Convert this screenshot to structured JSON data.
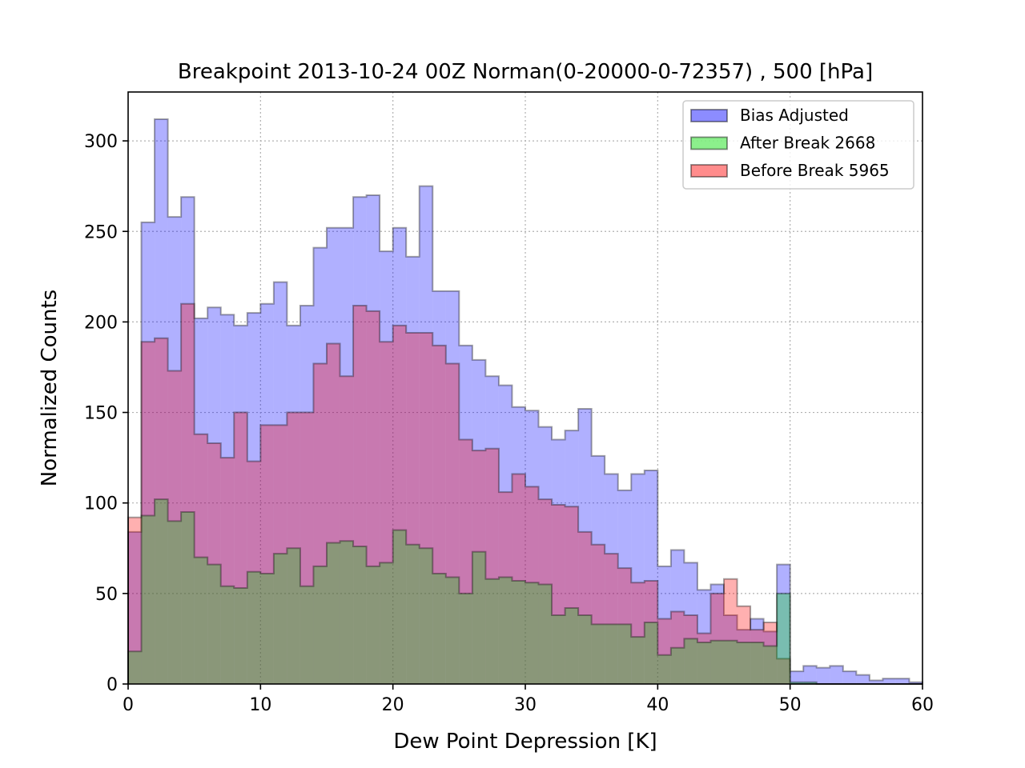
{
  "chart_data": {
    "type": "histogram",
    "title": "Breakpoint 2013-10-24 00Z Norman(0-20000-0-72357) , 500 [hPa]",
    "xlabel": "Dew Point Depression [K]",
    "ylabel": "Normalized Counts",
    "xlim": [
      0,
      60
    ],
    "ylim": [
      0,
      327
    ],
    "xticks": [
      0,
      10,
      20,
      30,
      40,
      50,
      60
    ],
    "yticks": [
      0,
      50,
      100,
      150,
      200,
      250,
      300
    ],
    "grid": true,
    "legend_position": "upper-right",
    "bin_width": 1,
    "series": [
      {
        "name": "Bias Adjusted",
        "color": "#0000ff",
        "start": 0,
        "values": [
          84,
          255,
          312,
          258,
          269,
          202,
          208,
          204,
          198,
          205,
          210,
          222,
          198,
          209,
          241,
          252,
          252,
          269,
          270,
          239,
          252,
          236,
          275,
          217,
          217,
          187,
          179,
          170,
          165,
          153,
          151,
          142,
          135,
          140,
          152,
          126,
          116,
          107,
          116,
          118,
          65,
          74,
          67,
          52,
          55,
          38,
          30,
          36,
          29,
          66,
          7,
          10,
          9,
          10,
          7,
          5,
          2,
          3,
          3,
          1
        ]
      },
      {
        "name": "After Break 2668",
        "color": "#00dd00",
        "start": 0,
        "values": [
          18,
          93,
          102,
          90,
          95,
          70,
          66,
          54,
          53,
          62,
          61,
          72,
          75,
          54,
          65,
          78,
          79,
          76,
          65,
          67,
          85,
          77,
          75,
          61,
          59,
          50,
          73,
          58,
          59,
          57,
          56,
          55,
          38,
          42,
          38,
          33,
          33,
          33,
          26,
          34,
          16,
          20,
          25,
          23,
          24,
          24,
          23,
          23,
          21,
          50,
          1,
          1,
          0,
          0,
          0,
          0,
          0,
          0,
          0,
          0
        ]
      },
      {
        "name": "Before Break 5965",
        "color": "#ff0000",
        "start": 0,
        "values": [
          92,
          189,
          191,
          173,
          210,
          138,
          133,
          125,
          150,
          123,
          143,
          143,
          150,
          150,
          177,
          188,
          170,
          209,
          206,
          189,
          198,
          194,
          194,
          187,
          177,
          135,
          129,
          130,
          106,
          116,
          109,
          102,
          99,
          98,
          84,
          77,
          72,
          64,
          56,
          57,
          36,
          40,
          38,
          28,
          50,
          58,
          43,
          30,
          34,
          14,
          0,
          0,
          0,
          0,
          0,
          0,
          0,
          0,
          0,
          0
        ]
      }
    ]
  }
}
